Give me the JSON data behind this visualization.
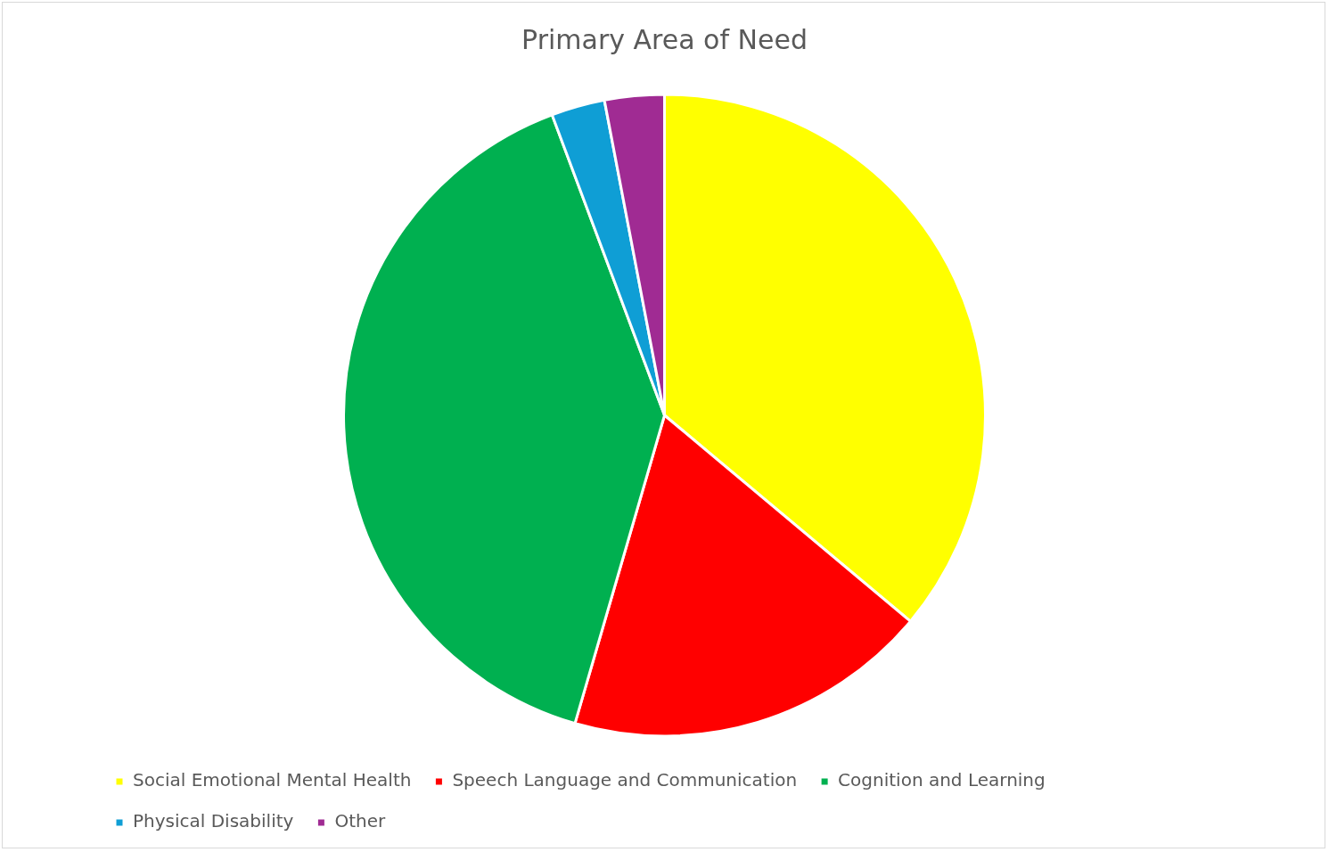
{
  "chart_data": {
    "type": "pie",
    "title": "Primary Area of Need",
    "categories": [
      "Social Emotional Mental Health",
      "Speech Language and Communication",
      "Cognition and Learning",
      "Physical Disability",
      "Other"
    ],
    "values": [
      36.1,
      18.4,
      39.8,
      2.7,
      3.0
    ],
    "colors": [
      "#ffff00",
      "#ff0000",
      "#00b050",
      "#0f9ed5",
      "#a02b93"
    ],
    "legend": "bottom"
  }
}
